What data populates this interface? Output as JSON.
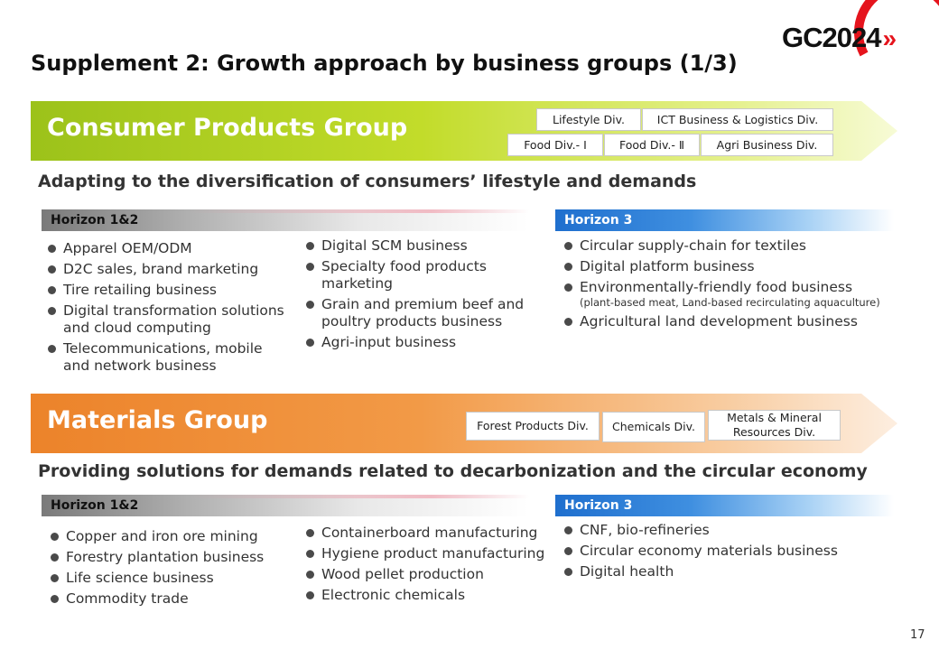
{
  "logo": {
    "text": "GC2024",
    "chevron": "»"
  },
  "page": {
    "title": "Supplement 2: Growth approach by business groups (1/3)",
    "number": "17"
  },
  "sections": [
    {
      "group": "Consumer Products Group",
      "divisions_row1": [
        "Lifestyle Div.",
        "ICT Business & Logistics Div."
      ],
      "divisions_row2": [
        "Food Div.- Ⅰ",
        "Food Div.- Ⅱ",
        "Agri Business Div."
      ],
      "subtitle": "Adapting to the diversification of consumers’ lifestyle and demands",
      "h12_label": "Horizon 1&2",
      "h3_label": "Horizon 3",
      "h12_col1": [
        "Apparel OEM/ODM",
        "D2C sales, brand marketing",
        "Tire retailing business",
        "Digital transformation solutions and cloud computing",
        "Telecommunications, mobile and network business"
      ],
      "h12_col2": [
        "Digital SCM business",
        "Specialty food products marketing",
        "Grain and premium beef and poultry products business",
        "Agri-input business"
      ],
      "h3_items": [
        "Circular supply-chain for textiles",
        "Digital platform business",
        "Environmentally-friendly food business",
        "Agricultural land development business"
      ],
      "h3_note": "(plant-based meat,  Land-based recirculating aquaculture)"
    },
    {
      "group": "Materials Group",
      "divisions": [
        "Forest Products Div.",
        "Chemicals Div.",
        "Metals & Mineral Resources Div."
      ],
      "subtitle": "Providing solutions for demands related to decarbonization and the circular economy",
      "h12_label": "Horizon 1&2",
      "h3_label": "Horizon 3",
      "h12_col1": [
        "Copper and iron ore mining",
        "Forestry plantation business",
        "Life science business",
        "Commodity trade"
      ],
      "h12_col2": [
        "Containerboard manufacturing",
        "Hygiene product manufacturing",
        "Wood pellet production",
        "Electronic chemicals"
      ],
      "h3_items": [
        "CNF, bio-refineries",
        "Circular economy materials business",
        "Digital health"
      ]
    }
  ],
  "colors": {
    "consumer_banner": "#a6c81c",
    "materials_banner": "#ef8a2e",
    "horizon3": "#1f6fce",
    "logo_red": "#e5141d"
  }
}
